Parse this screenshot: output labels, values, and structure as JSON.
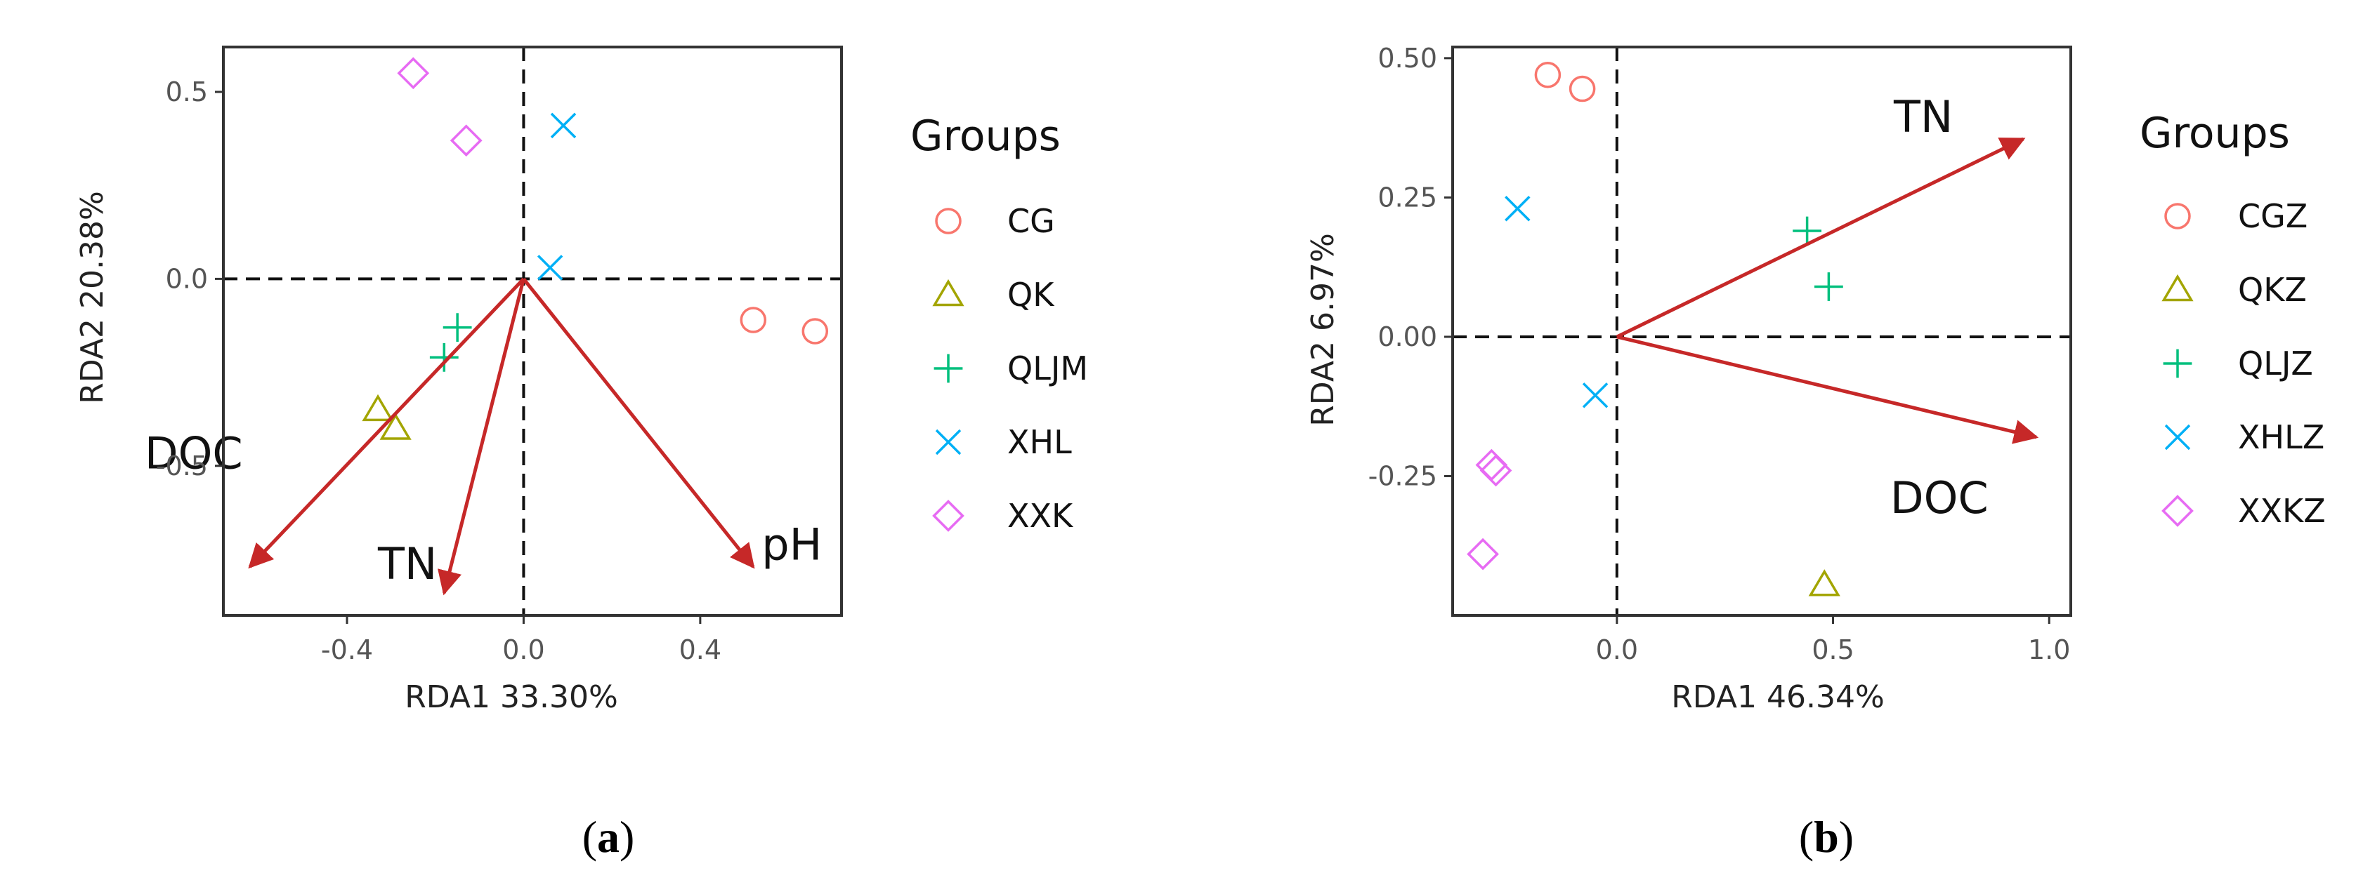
{
  "chart_data": [
    {
      "type": "scatter",
      "subtype": "rda-biplot",
      "caption": "a",
      "xlabel": "RDA1   33.30%",
      "ylabel": "RDA2   20.38%",
      "xlim": [
        -0.68,
        0.72
      ],
      "ylim": [
        -0.9,
        0.62
      ],
      "xticks": [
        {
          "v": -0.4,
          "label": "-0.4"
        },
        {
          "v": 0.0,
          "label": "0.0"
        },
        {
          "v": 0.4,
          "label": "0.4"
        }
      ],
      "yticks": [
        {
          "v": 0.5,
          "label": "0.5"
        },
        {
          "v": 0.0,
          "label": "0.0"
        },
        {
          "v": -0.5,
          "label": "-0.5"
        }
      ],
      "grid": false,
      "legend_title": "Groups",
      "legend_position": "right",
      "groups": [
        {
          "name": "CG",
          "shape": "circle",
          "color": "#F8766D",
          "points": [
            [
              0.52,
              -0.11
            ],
            [
              0.66,
              -0.14
            ]
          ]
        },
        {
          "name": "QK",
          "shape": "triangle",
          "color": "#A3A500",
          "points": [
            [
              -0.33,
              -0.35
            ],
            [
              -0.29,
              -0.4
            ]
          ]
        },
        {
          "name": "QLJM",
          "shape": "plus",
          "color": "#00BF7D",
          "points": [
            [
              -0.15,
              -0.13
            ],
            [
              -0.18,
              -0.21
            ]
          ]
        },
        {
          "name": "XHL",
          "shape": "cross",
          "color": "#00B0F6",
          "points": [
            [
              0.09,
              0.41
            ],
            [
              0.06,
              0.03
            ]
          ]
        },
        {
          "name": "XXK",
          "shape": "diamond",
          "color": "#E76BF3",
          "points": [
            [
              -0.25,
              0.55
            ],
            [
              -0.13,
              0.37
            ]
          ]
        }
      ],
      "arrows": [
        {
          "label": "DOC",
          "x": -0.62,
          "y": -0.77
        },
        {
          "label": "TN",
          "x": -0.18,
          "y": -0.84
        },
        {
          "label": "pH",
          "x": 0.52,
          "y": -0.77
        }
      ]
    },
    {
      "type": "scatter",
      "subtype": "rda-biplot",
      "caption": "b",
      "xlabel": "RDA1   46.34%",
      "ylabel": "RDA2   6.97%",
      "xlim": [
        -0.38,
        1.05
      ],
      "ylim": [
        -0.5,
        0.52
      ],
      "xticks": [
        {
          "v": 0.0,
          "label": "0.0"
        },
        {
          "v": 0.5,
          "label": "0.5"
        },
        {
          "v": 1.0,
          "label": "1.0"
        }
      ],
      "yticks": [
        {
          "v": 0.5,
          "label": "0.50"
        },
        {
          "v": 0.25,
          "label": "0.25"
        },
        {
          "v": 0.0,
          "label": "0.00"
        },
        {
          "v": -0.25,
          "label": "-0.25"
        }
      ],
      "grid": false,
      "legend_title": "Groups",
      "legend_position": "right",
      "groups": [
        {
          "name": "CGZ",
          "shape": "circle",
          "color": "#F8766D",
          "points": [
            [
              -0.16,
              0.47
            ],
            [
              -0.08,
              0.445
            ]
          ]
        },
        {
          "name": "QKZ",
          "shape": "triangle",
          "color": "#A3A500",
          "points": [
            [
              0.48,
              -0.445
            ]
          ]
        },
        {
          "name": "QLJZ",
          "shape": "plus",
          "color": "#00BF7D",
          "points": [
            [
              0.44,
              0.19
            ],
            [
              0.49,
              0.09
            ]
          ]
        },
        {
          "name": "XHLZ",
          "shape": "cross",
          "color": "#00B0F6",
          "points": [
            [
              -0.23,
              0.23
            ],
            [
              -0.05,
              -0.105
            ]
          ]
        },
        {
          "name": "XXKZ",
          "shape": "diamond",
          "color": "#E76BF3",
          "points": [
            [
              -0.29,
              -0.23
            ],
            [
              -0.28,
              -0.24
            ],
            [
              -0.31,
              -0.39
            ]
          ]
        }
      ],
      "arrows": [
        {
          "label": "TN",
          "x": 0.94,
          "y": 0.355
        },
        {
          "label": "DOC",
          "x": 0.97,
          "y": -0.18
        }
      ]
    }
  ],
  "colors": {
    "arrow": "#C62828",
    "axis_frame": "#333333",
    "zero_lines": "#111111"
  }
}
